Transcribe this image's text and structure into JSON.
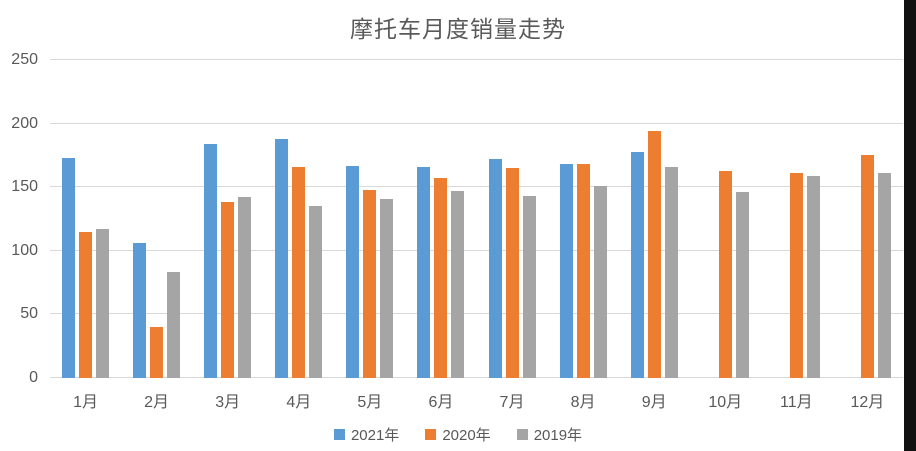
{
  "title": "摩托车月度销量走势",
  "chart_data": {
    "type": "bar",
    "title": "摩托车月度销量走势",
    "categories": [
      "1月",
      "2月",
      "3月",
      "4月",
      "5月",
      "6月",
      "7月",
      "8月",
      "9月",
      "10月",
      "11月",
      "12月"
    ],
    "series": [
      {
        "name": "2021年",
        "color": "#5B9BD5",
        "values": [
          173,
          106,
          184,
          188,
          167,
          166,
          172,
          168,
          178,
          null,
          null,
          null
        ]
      },
      {
        "name": "2020年",
        "color": "#ED7D31",
        "values": [
          115,
          40,
          138,
          166,
          148,
          157,
          165,
          168,
          194,
          163,
          161,
          175
        ]
      },
      {
        "name": "2019年",
        "color": "#A5A5A5",
        "values": [
          117,
          83,
          142,
          135,
          141,
          147,
          143,
          151,
          166,
          146,
          159,
          161
        ]
      }
    ],
    "xlabel": "",
    "ylabel": "",
    "ylim": [
      0,
      250
    ],
    "yticks": [
      0,
      50,
      100,
      150,
      200,
      250
    ],
    "grid": true,
    "legend_position": "bottom"
  },
  "colors": {
    "gridline": "#d9d9d9",
    "axis_text": "#595959",
    "title_text": "#595959",
    "right_strip": "#111111",
    "background": "#ffffff"
  }
}
